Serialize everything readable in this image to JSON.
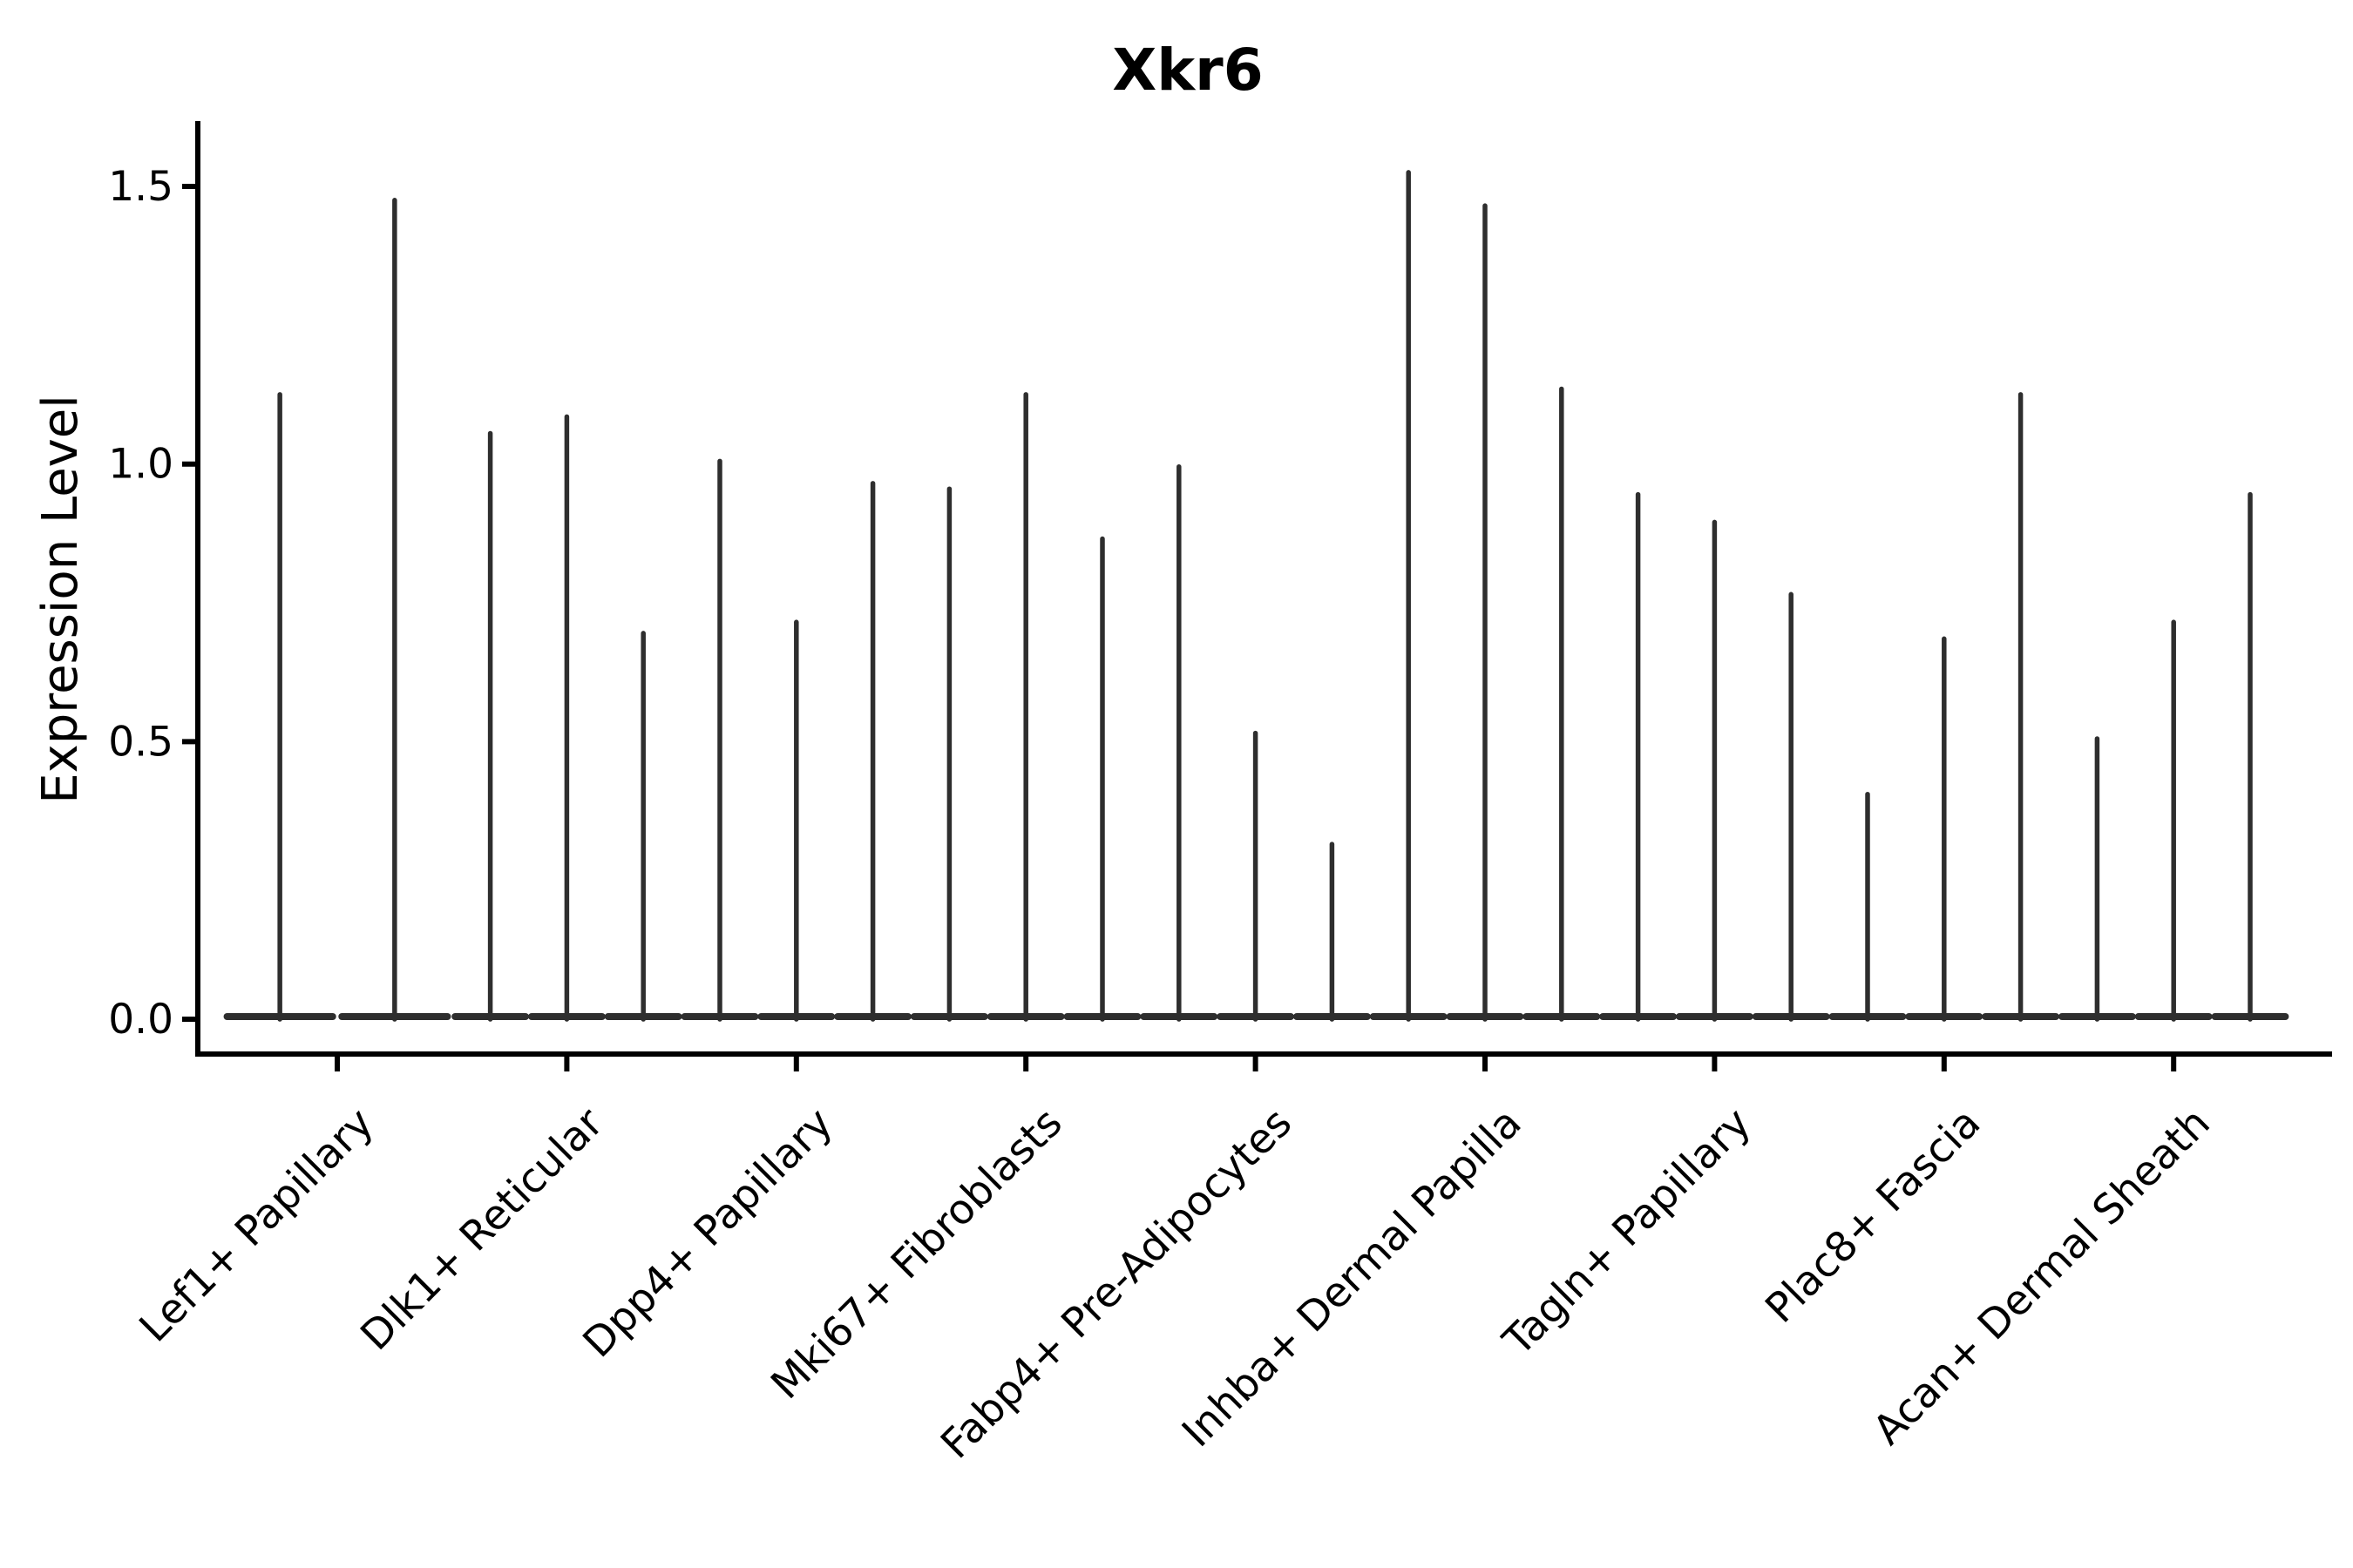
{
  "chart_data": {
    "type": "violin",
    "title": "Xkr6",
    "xlabel": "",
    "ylabel": "Expression Level",
    "ylim": [
      -0.06,
      1.62
    ],
    "grid": false,
    "legend": "none",
    "yticks": [
      0.0,
      0.5,
      1.0,
      1.5
    ],
    "ytick_labels": [
      "0.0",
      "0.5",
      "1.0",
      "1.5"
    ],
    "description": "Violin plot of Xkr6 expression; most cells at 0 so each violin is a wide flat base at 0 with a thin spike to its maximum. Each category holds 2-3 violins (splits).",
    "categories": [
      {
        "label": "Lef1+ Papillary",
        "violin_maxima": [
          1.13,
          1.48
        ]
      },
      {
        "label": "Dlk1+ Reticular",
        "violin_maxima": [
          1.06,
          1.09,
          0.7
        ]
      },
      {
        "label": "Dpp4+ Papillary",
        "violin_maxima": [
          1.01,
          0.72,
          0.97
        ]
      },
      {
        "label": "Mki67+ Fibroblasts",
        "violin_maxima": [
          0.96,
          1.13,
          0.87
        ]
      },
      {
        "label": "Fabp4+ Pre-Adipocytes",
        "violin_maxima": [
          1.0,
          0.52,
          0.32
        ]
      },
      {
        "label": "Inhba+ Dermal Papilla",
        "violin_maxima": [
          1.53,
          1.47,
          1.14
        ]
      },
      {
        "label": "Tagln+ Papillary",
        "violin_maxima": [
          0.95,
          0.9,
          0.77
        ]
      },
      {
        "label": "Plac8+ Fascia",
        "violin_maxima": [
          0.41,
          0.69,
          1.13
        ]
      },
      {
        "label": "Acan+ Dermal Sheath",
        "violin_maxima": [
          0.51,
          0.72,
          0.95
        ]
      }
    ],
    "baseline_value": 0.0
  },
  "colors": {
    "background": "#ffffff",
    "violin": "#2e2e2e",
    "axis": "#000000",
    "text": "#000000"
  }
}
